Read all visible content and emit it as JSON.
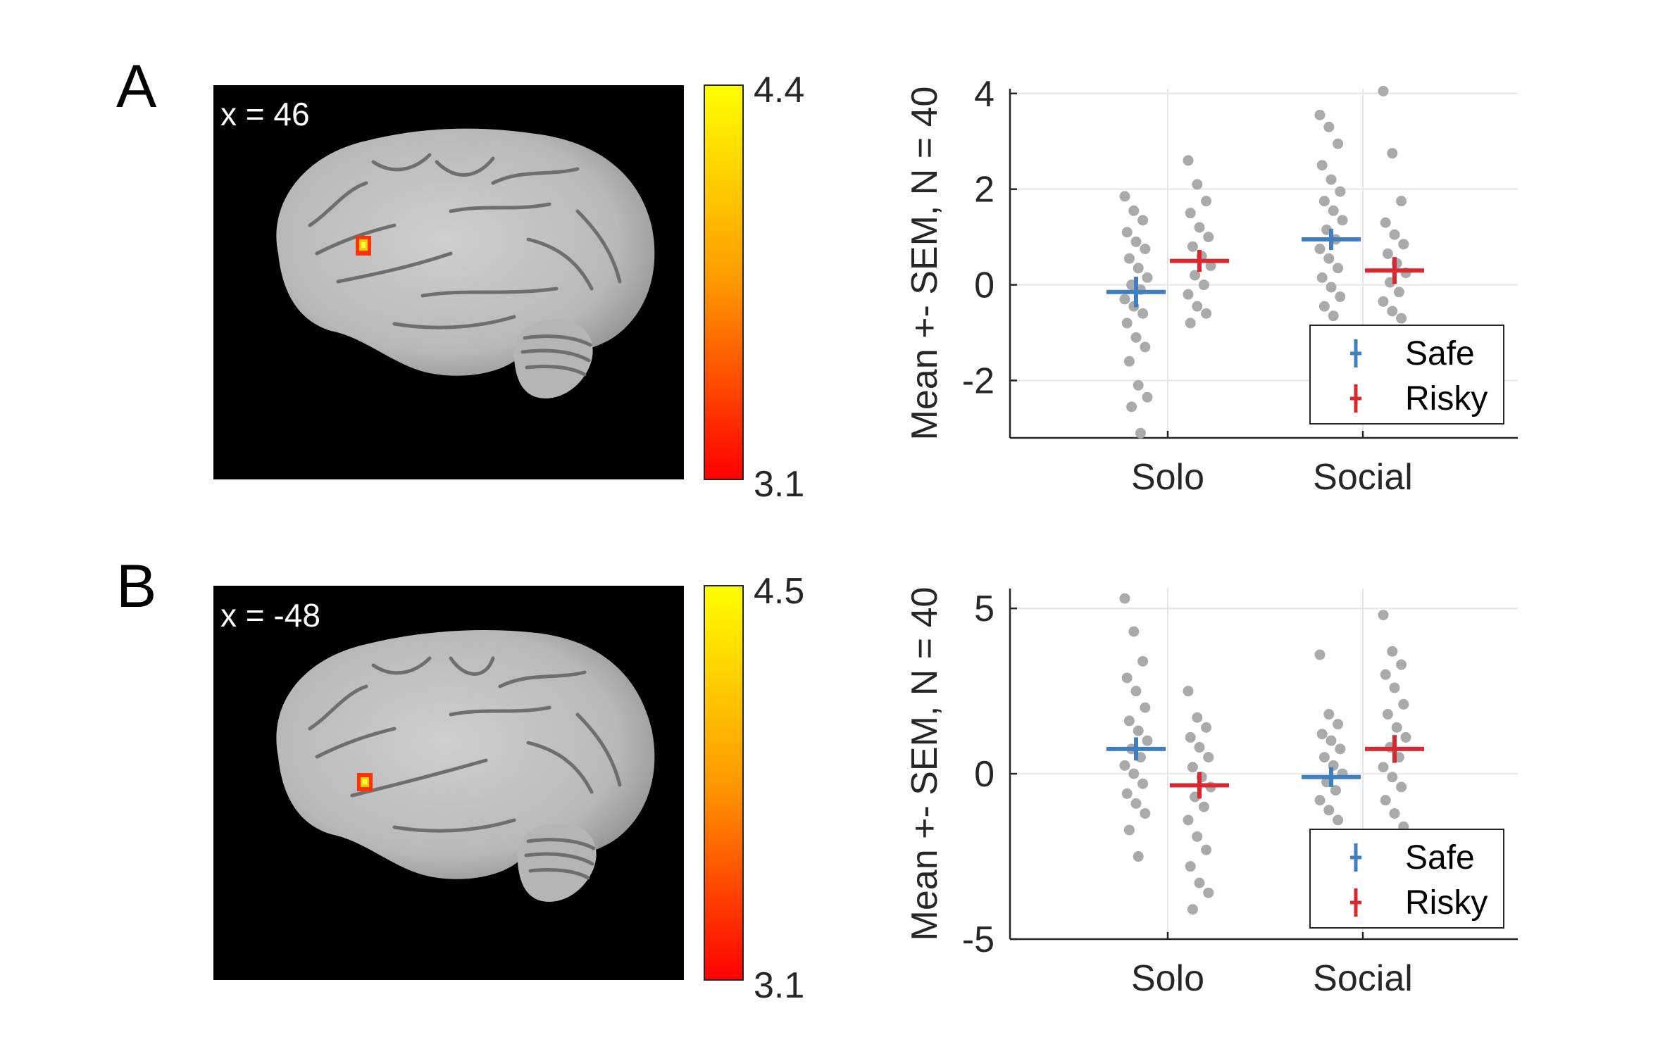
{
  "panels": [
    {
      "label": "A",
      "slice_label": "x = 46",
      "colorbar": {
        "max_label": "4.4",
        "min_label": "3.1",
        "low_color": "#ff0000",
        "mid_color": "#ff9900",
        "high_color": "#ffff00"
      }
    },
    {
      "label": "B",
      "slice_label": "x = -48",
      "colorbar": {
        "max_label": "4.5",
        "min_label": "3.1",
        "low_color": "#ff0000",
        "mid_color": "#ff9900",
        "high_color": "#ffff00"
      }
    }
  ],
  "colors": {
    "safe": "#3f7fbd",
    "risky": "#d9282f",
    "points": "#aaaaaa",
    "grid": "#e6e6e6",
    "axis": "#262626"
  },
  "chart_data": [
    {
      "type": "scatter",
      "title": "",
      "xlabel": "",
      "ylabel": "Mean +- SEM, N = 40",
      "categories": [
        "Solo",
        "Social"
      ],
      "ylim": [
        -3.2,
        4.1
      ],
      "yticks": [
        4,
        2,
        0,
        -2
      ],
      "ytick_labels": [
        "4",
        "2",
        "0",
        "-2"
      ],
      "grid": true,
      "legend_position": "bottom-right",
      "series": [
        {
          "name": "Safe",
          "means": [
            -0.15,
            0.95
          ],
          "sem": [
            0.32,
            0.22
          ],
          "points": [
            [
              1.85,
              1.55,
              1.35,
              1.1,
              0.9,
              0.75,
              0.55,
              0.35,
              0.15,
              0.0,
              -0.1,
              -0.3,
              -0.45,
              -0.6,
              -0.8,
              -1.1,
              -1.3,
              -1.6,
              -2.1,
              -2.35,
              -2.55,
              -3.1
            ],
            [
              3.55,
              3.3,
              2.95,
              2.5,
              2.2,
              1.95,
              1.75,
              1.55,
              1.35,
              1.15,
              0.95,
              0.75,
              0.55,
              0.35,
              0.15,
              -0.05,
              -0.25,
              -0.45,
              -0.65
            ]
          ]
        },
        {
          "name": "Risky",
          "means": [
            0.5,
            0.3
          ],
          "sem": [
            0.23,
            0.28
          ],
          "points": [
            [
              2.6,
              2.1,
              1.75,
              1.5,
              1.2,
              1.0,
              0.8,
              0.6,
              0.4,
              0.2,
              0.0,
              -0.2,
              -0.45,
              -0.6,
              -0.8
            ],
            [
              4.05,
              2.75,
              1.75,
              1.3,
              1.05,
              0.85,
              0.65,
              0.45,
              0.25,
              0.05,
              -0.15,
              -0.35,
              -0.55,
              -0.7
            ]
          ]
        }
      ]
    },
    {
      "type": "scatter",
      "title": "",
      "xlabel": "",
      "ylabel": "Mean +- SEM, N = 40",
      "categories": [
        "Solo",
        "Social"
      ],
      "ylim": [
        -5,
        5.6
      ],
      "yticks": [
        5,
        0,
        -5
      ],
      "ytick_labels": [
        "5",
        "0",
        "-5"
      ],
      "grid": true,
      "legend_position": "bottom-right",
      "series": [
        {
          "name": "Safe",
          "means": [
            0.75,
            -0.1
          ],
          "sem": [
            0.35,
            0.3
          ],
          "points": [
            [
              5.3,
              4.3,
              3.4,
              2.9,
              2.5,
              2.0,
              1.6,
              1.3,
              1.0,
              0.75,
              0.5,
              0.25,
              0.0,
              -0.3,
              -0.6,
              -0.9,
              -1.2,
              -1.7,
              -2.5
            ],
            [
              3.6,
              1.8,
              1.5,
              1.2,
              1.0,
              0.75,
              0.5,
              0.25,
              0.0,
              -0.25,
              -0.5,
              -0.8,
              -1.1,
              -1.4
            ]
          ]
        },
        {
          "name": "Risky",
          "means": [
            -0.35,
            0.75
          ],
          "sem": [
            0.4,
            0.42
          ],
          "points": [
            [
              2.5,
              1.7,
              1.4,
              1.1,
              0.8,
              0.5,
              0.2,
              -0.1,
              -0.4,
              -0.7,
              -1.0,
              -1.4,
              -1.9,
              -2.3,
              -2.8,
              -3.3,
              -3.6,
              -4.1
            ],
            [
              4.8,
              3.7,
              3.3,
              3.0,
              2.6,
              2.1,
              1.8,
              1.4,
              1.1,
              0.8,
              0.5,
              0.2,
              -0.1,
              -0.4,
              -0.8,
              -1.2,
              -1.6
            ]
          ]
        }
      ]
    }
  ]
}
